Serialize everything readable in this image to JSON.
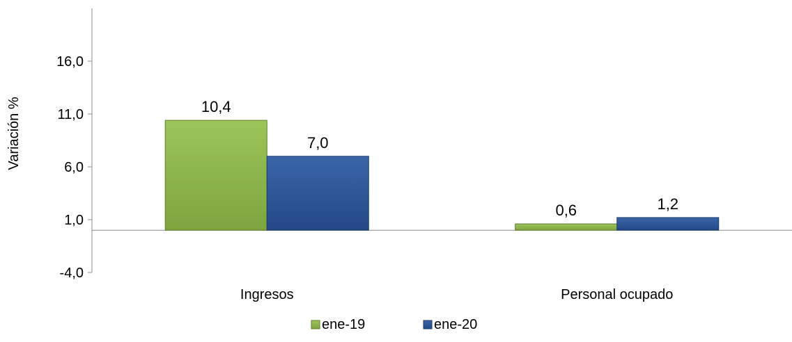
{
  "chart_data": {
    "type": "bar",
    "title": "",
    "xlabel": "",
    "ylabel": "Variación %",
    "categories": [
      "Ingresos",
      "Personal ocupado"
    ],
    "series": [
      {
        "name": "ene-19",
        "values": [
          10.4,
          0.6
        ],
        "labels": [
          "10,4",
          "0,6"
        ],
        "color": "#8cb04a"
      },
      {
        "name": "ene-20",
        "values": [
          7.0,
          1.2
        ],
        "labels": [
          "7,0",
          "1,2"
        ],
        "color": "#2f5597"
      }
    ],
    "ylim": [
      -4.0,
      21.0
    ],
    "yticks": [
      -4.0,
      1.0,
      6.0,
      11.0,
      16.0
    ],
    "ytick_labels": [
      "-4,0",
      "1,0",
      "6,0",
      "11,0",
      "16,0"
    ],
    "grid": false,
    "legend_position": "bottom"
  }
}
